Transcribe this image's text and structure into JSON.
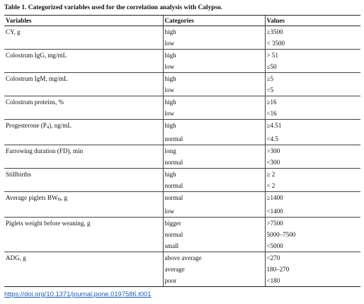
{
  "caption": "Table 1.  Categorized variables used for the correlation analysis with Calypso.",
  "headers": {
    "variables": "Variables",
    "categories": "Categories",
    "values": "Values"
  },
  "rows": [
    {
      "variable": "CY, g",
      "category": "high",
      "value": "≥3500"
    },
    {
      "variable": "",
      "category": "low",
      "value": "< 3500"
    },
    {
      "variable": "Colostrum IgG, mg/mL",
      "category": "high",
      "value": "> 51"
    },
    {
      "variable": "",
      "category": "low",
      "value": "≤50"
    },
    {
      "variable": "Colostrum IgM, mg/mL",
      "category": "high",
      "value": "≥5"
    },
    {
      "variable": "",
      "category": "low",
      "value": "<5"
    },
    {
      "variable": "Colostrum proteins, %",
      "category": "high",
      "value": "≥16"
    },
    {
      "variable": "",
      "category": "low",
      "value": "<16"
    },
    {
      "variable_pre": "Progesterone (P",
      "variable_sub": "4",
      "variable_post": "), ng/mL",
      "category": "high",
      "value": "≥4.51"
    },
    {
      "variable": "",
      "category": "normal",
      "value": "<4.5"
    },
    {
      "variable": "Farrowing duration (FD), min",
      "category": "long",
      "value": ">300"
    },
    {
      "variable": "",
      "category": "normal",
      "value": "<300"
    },
    {
      "variable": "Stillbirths",
      "category": "high",
      "value": "≥ 2"
    },
    {
      "variable": "",
      "category": "normal",
      "value": "< 2"
    },
    {
      "variable_pre": "Average piglets BW",
      "variable_sub": "B",
      "variable_post": ", g",
      "category": "normal",
      "value": "≥1400"
    },
    {
      "variable": "",
      "category": "low",
      "value": "<1400"
    },
    {
      "variable": "Piglets weight before weaning, g",
      "category": "bigger",
      "value": ">7500"
    },
    {
      "variable": "",
      "category": "normal",
      "value": "5000–7500"
    },
    {
      "variable": "",
      "category": "small",
      "value": "<5000"
    },
    {
      "variable": "ADG, g",
      "category": "above average",
      "value": "<270"
    },
    {
      "variable": "",
      "category": "average",
      "value": "180–270"
    },
    {
      "variable": "",
      "category": "poor",
      "value": "<180"
    }
  ],
  "doi": "https://doi.org/10.1371/journal.pone.0197586.t001"
}
